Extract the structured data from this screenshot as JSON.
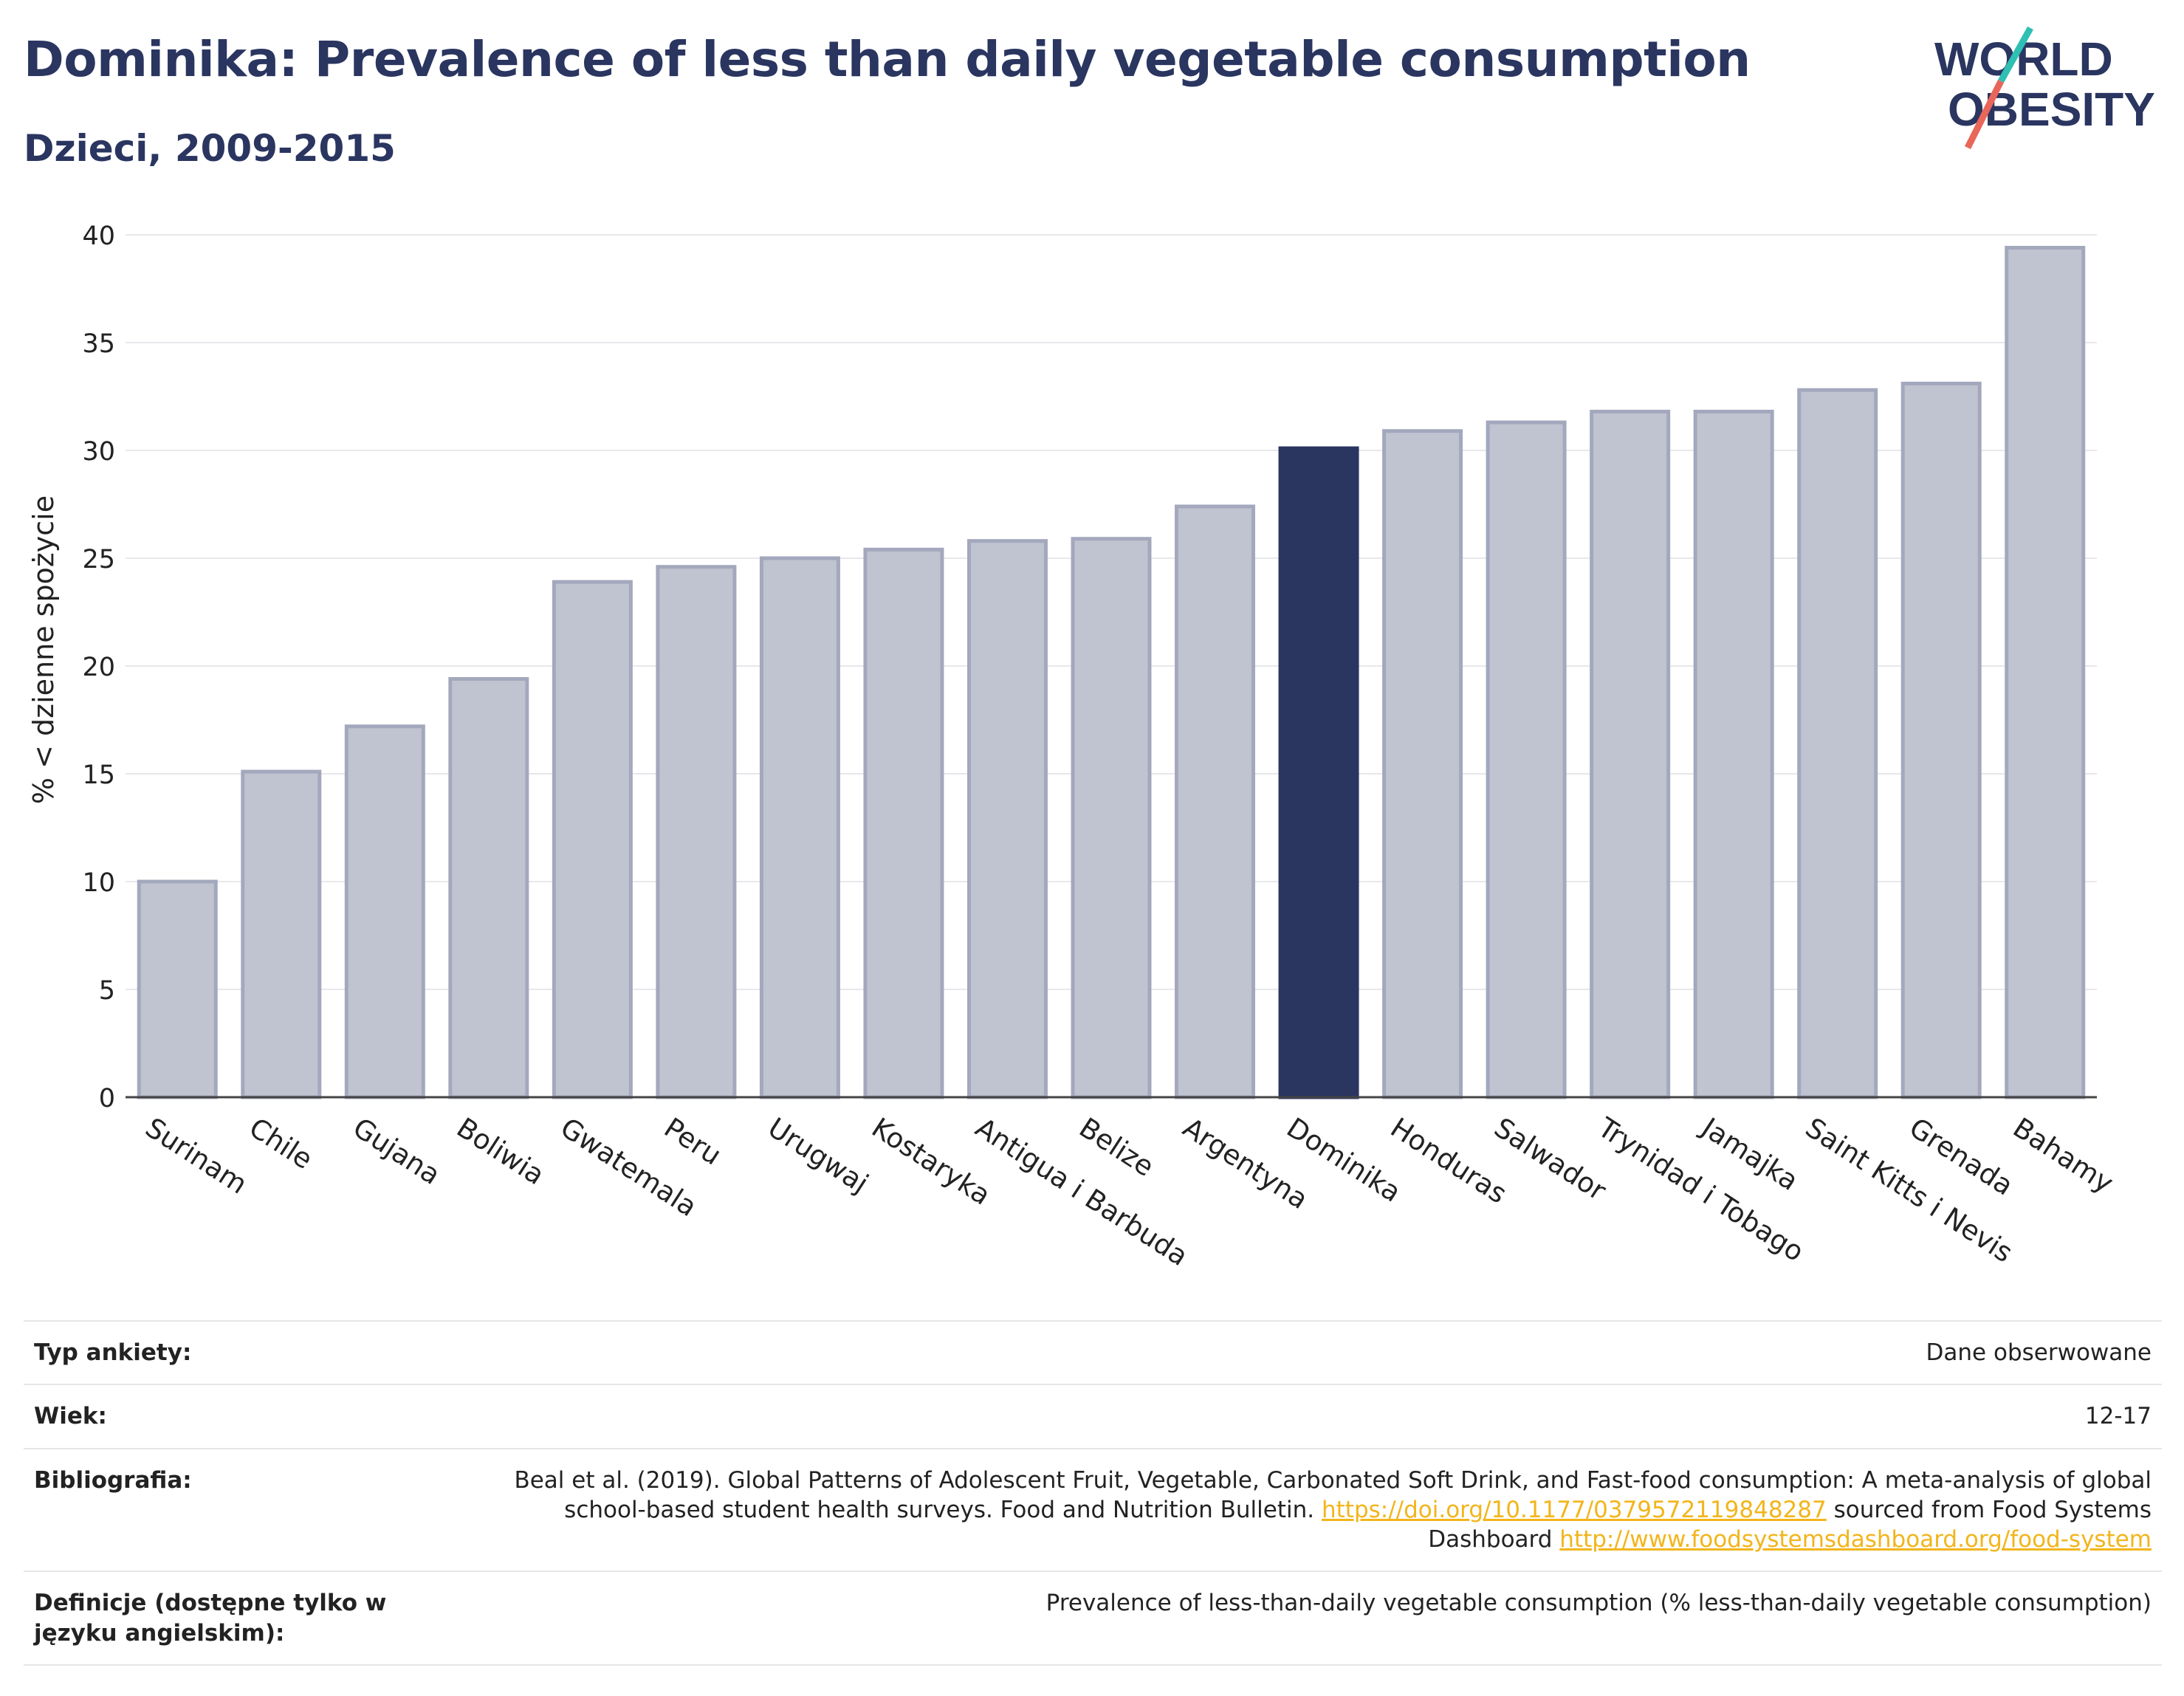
{
  "header": {
    "title": "Dominika: Prevalence of less than daily vegetable consumption",
    "subtitle": "Dzieci, 2009-2015"
  },
  "logo": {
    "line1": "WORLD",
    "line2": "OBESITY",
    "text_color": "#2a3560",
    "slash_colors": [
      "#2fbfb3",
      "#e8665a"
    ]
  },
  "chart_data": {
    "type": "bar",
    "title": "",
    "xlabel": "",
    "ylabel": "% < dzienne spożycie",
    "ylim": [
      0,
      40
    ],
    "yticks": [
      0,
      5,
      10,
      15,
      20,
      25,
      30,
      35,
      40
    ],
    "grid": true,
    "highlight": "Dominika",
    "colors": {
      "bar": "#c0c3d0",
      "bar_border": "#a3a8bd",
      "highlight": "#2a3560"
    },
    "categories": [
      "Surinam",
      "Chile",
      "Gujana",
      "Boliwia",
      "Gwatemala",
      "Peru",
      "Urugwaj",
      "Kostaryka",
      "Antigua i Barbuda",
      "Belize",
      "Argentyna",
      "Dominika",
      "Honduras",
      "Salwador",
      "Trynidad i Tobago",
      "Jamajka",
      "Saint Kitts i Nevis",
      "Grenada",
      "Bahamy"
    ],
    "values": [
      10.0,
      15.1,
      17.2,
      19.4,
      23.9,
      24.6,
      25.0,
      25.4,
      25.8,
      25.9,
      27.4,
      30.1,
      30.9,
      31.3,
      31.8,
      31.8,
      32.8,
      33.1,
      39.4
    ]
  },
  "info": {
    "rows": [
      {
        "key": "Typ ankiety:",
        "value": "Dane obserwowane"
      },
      {
        "key": "Wiek:",
        "value": "12-17"
      },
      {
        "key": "Bibliografia:",
        "value_pre": "Beal et al. (2019). Global Patterns of Adolescent Fruit, Vegetable, Carbonated Soft Drink, and Fast-food consumption: A meta-analysis of global school-based student health surveys. Food and Nutrition Bulletin. ",
        "link1": "https://doi.org/10.1177/0379572119848287",
        "value_mid": " sourced from Food Systems Dashboard ",
        "link2": "http://www.foodsystemsdashboard.org/food-system"
      },
      {
        "key": "Definicje (dostępne tylko w języku angielskim):",
        "value": "Prevalence of less-than-daily vegetable consumption (% less-than-daily vegetable consumption)"
      }
    ]
  }
}
